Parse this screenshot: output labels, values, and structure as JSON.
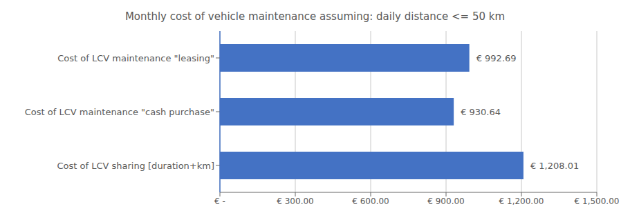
{
  "chart_data": {
    "type": "bar",
    "orientation": "horizontal",
    "title": "Monthly cost of vehicle maintenance assuming: daily distance <= 50 km",
    "categories": [
      "Cost of LCV sharing [duration+km]",
      "Cost of LCV maintenance \"cash purchase\"",
      "Cost of LCV maintenance \"leasing\""
    ],
    "values": [
      1208.01,
      930.64,
      992.69
    ],
    "value_labels": [
      "€ 1,208.01",
      "€ 930.64",
      "€ 992.69"
    ],
    "data_labels": true,
    "color": "#4472C4",
    "xlim": [
      0,
      1500
    ],
    "xticks": [
      {
        "value": 0,
        "label": "€ -"
      },
      {
        "value": 300,
        "label": "€ 300.00"
      },
      {
        "value": 600,
        "label": "€ 600.00"
      },
      {
        "value": 900,
        "label": "€ 900.00"
      },
      {
        "value": 1200,
        "label": "€ 1,200.00"
      },
      {
        "value": 1500,
        "label": "€ 1,500.00"
      }
    ],
    "grid": true
  }
}
